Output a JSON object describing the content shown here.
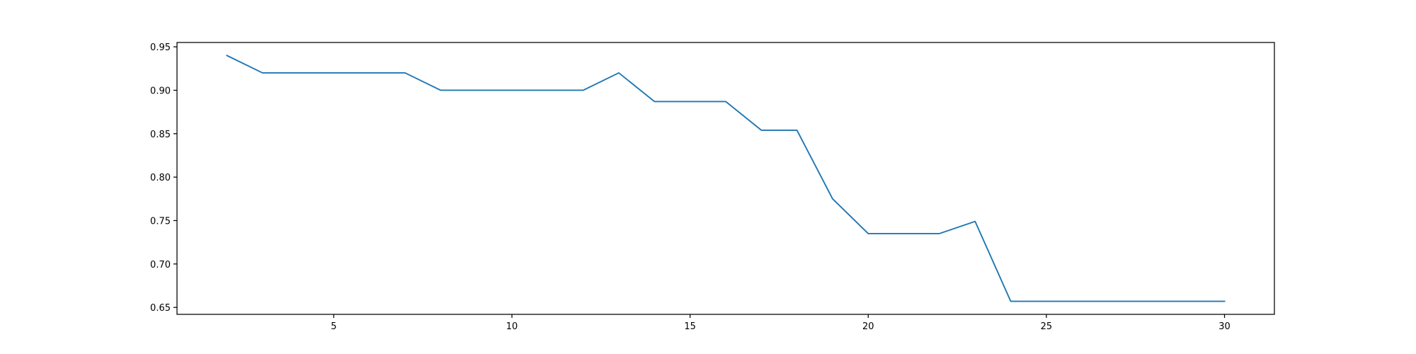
{
  "chart_data": {
    "type": "line",
    "title": "",
    "xlabel": "",
    "ylabel": "",
    "xlim": [
      0.6,
      31.4
    ],
    "ylim": [
      0.642,
      0.955
    ],
    "xticks": [
      5,
      10,
      15,
      20,
      25,
      30
    ],
    "xtick_labels": [
      "5",
      "10",
      "15",
      "20",
      "25",
      "30"
    ],
    "yticks": [
      0.65,
      0.7,
      0.75,
      0.8,
      0.85,
      0.9,
      0.95
    ],
    "ytick_labels": [
      "0.65",
      "0.70",
      "0.75",
      "0.80",
      "0.85",
      "0.90",
      "0.95"
    ],
    "grid": false,
    "series": [
      {
        "color": "#1f77b4",
        "x": [
          2,
          3,
          4,
          5,
          6,
          7,
          8,
          9,
          10,
          11,
          12,
          13,
          14,
          15,
          16,
          17,
          18,
          19,
          20,
          21,
          22,
          23,
          24,
          25,
          26,
          27,
          28,
          29,
          30
        ],
        "y": [
          0.94,
          0.92,
          0.92,
          0.92,
          0.92,
          0.92,
          0.9,
          0.9,
          0.9,
          0.9,
          0.9,
          0.92,
          0.887,
          0.887,
          0.887,
          0.854,
          0.854,
          0.775,
          0.735,
          0.735,
          0.735,
          0.749,
          0.657,
          0.657,
          0.657,
          0.657,
          0.657,
          0.657,
          0.657
        ]
      }
    ]
  }
}
